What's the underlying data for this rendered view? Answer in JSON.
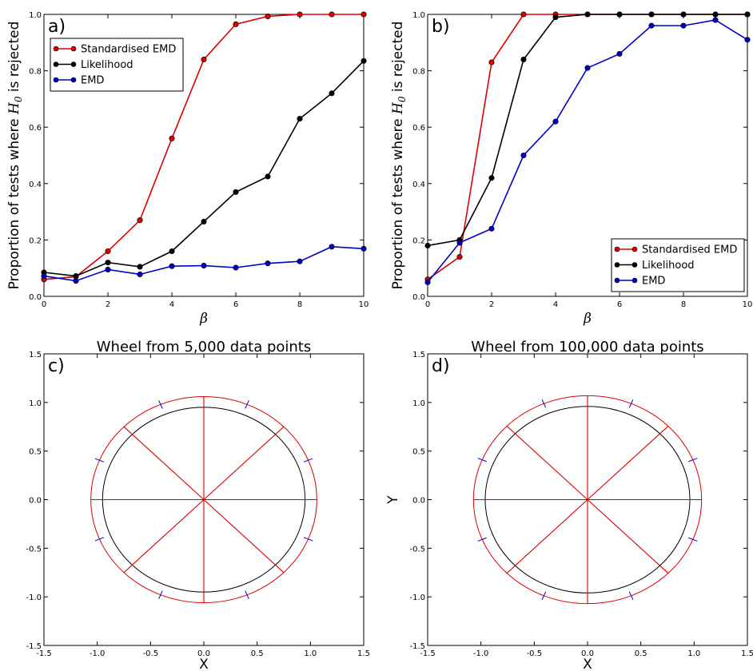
{
  "chart_data": [
    {
      "panel": "a)",
      "type": "line",
      "title": "",
      "xlabel": "β",
      "ylabel": "Proportion of tests where H0 is rejected",
      "xlim": [
        0,
        10
      ],
      "ylim": [
        0,
        1.0
      ],
      "xticks": [
        0,
        2,
        4,
        6,
        8,
        10
      ],
      "yticks": [
        0.0,
        0.2,
        0.4,
        0.6,
        0.8,
        1.0
      ],
      "legend_position": "top-left",
      "x": [
        0,
        1,
        2,
        3,
        4,
        5,
        6,
        7,
        8,
        9,
        10
      ],
      "series": [
        {
          "name": "Standardised EMD",
          "color": "#dd0000",
          "values": [
            0.06,
            0.07,
            0.16,
            0.27,
            0.56,
            0.84,
            0.965,
            0.993,
            1.0,
            1.0,
            1.0
          ]
        },
        {
          "name": "Likelihood",
          "color": "#000000",
          "values": [
            0.085,
            0.072,
            0.12,
            0.105,
            0.16,
            0.265,
            0.37,
            0.425,
            0.63,
            0.72,
            0.835
          ]
        },
        {
          "name": "EMD",
          "color": "#0000cc",
          "values": [
            0.072,
            0.055,
            0.095,
            0.078,
            0.107,
            0.109,
            0.102,
            0.117,
            0.124,
            0.176,
            0.169
          ]
        }
      ]
    },
    {
      "panel": "b)",
      "type": "line",
      "title": "",
      "xlabel": "β",
      "ylabel": "Proportion of tests where H0 is rejected",
      "xlim": [
        0,
        10
      ],
      "ylim": [
        0,
        1.0
      ],
      "xticks": [
        0,
        2,
        4,
        6,
        8,
        10
      ],
      "yticks": [
        0.0,
        0.2,
        0.4,
        0.6,
        0.8,
        1.0
      ],
      "legend_position": "bottom-right",
      "x": [
        0,
        1,
        2,
        3,
        4,
        5,
        6,
        7,
        8,
        9,
        10
      ],
      "series": [
        {
          "name": "Standardised EMD",
          "color": "#dd0000",
          "values": [
            0.06,
            0.14,
            0.83,
            1.0,
            1.0,
            1.0,
            1.0,
            1.0,
            1.0,
            1.0,
            1.0
          ]
        },
        {
          "name": "Likelihood",
          "color": "#000000",
          "values": [
            0.18,
            0.2,
            0.42,
            0.84,
            0.99,
            1.0,
            1.0,
            1.0,
            1.0,
            1.0,
            1.0
          ]
        },
        {
          "name": "EMD",
          "color": "#0000cc",
          "values": [
            0.05,
            0.19,
            0.24,
            0.5,
            0.62,
            0.81,
            0.86,
            0.96,
            0.96,
            0.98,
            0.91
          ]
        }
      ]
    },
    {
      "panel": "c)",
      "type": "diagram",
      "title": "Wheel from 5,000 data points",
      "xlabel": "X",
      "ylabel": "",
      "xlim": [
        -1.5,
        1.5
      ],
      "ylim": [
        -1.5,
        1.5
      ],
      "xticks": [
        -1.5,
        -1.0,
        -0.5,
        0.0,
        0.5,
        1.0,
        1.5
      ],
      "yticks": [
        -1.5,
        -1.0,
        -0.5,
        0.0,
        0.5,
        1.0,
        1.5
      ],
      "inner_circle_radius": 0.95,
      "outer_circle_radius": 1.06,
      "spokes_deg": [
        0,
        45,
        90,
        135,
        180,
        225,
        270,
        315
      ],
      "spoke_length": 1.06,
      "rim_marks_deg": [
        22.5,
        67.5,
        112.5,
        157.5,
        202.5,
        247.5,
        292.5,
        337.5
      ],
      "colors": {
        "inner": "#000000",
        "outer": "#dd0000",
        "marks": "#0000cc"
      }
    },
    {
      "panel": "d)",
      "type": "diagram",
      "title": "Wheel from 100,000 data points",
      "xlabel": "X",
      "ylabel": "Y",
      "xlim": [
        -1.5,
        1.5
      ],
      "ylim": [
        -1.5,
        1.5
      ],
      "xticks": [
        -1.5,
        -1.0,
        -0.5,
        0.0,
        0.5,
        1.0,
        1.5
      ],
      "yticks": [
        -1.5,
        -1.0,
        -0.5,
        0.0,
        0.5,
        1.0,
        1.5
      ],
      "inner_circle_radius": 0.96,
      "outer_circle_radius": 1.07,
      "spokes_deg": [
        0,
        45,
        90,
        135,
        180,
        225,
        270,
        315
      ],
      "spoke_length": 1.07,
      "rim_marks_deg": [
        22.5,
        67.5,
        112.5,
        157.5,
        202.5,
        247.5,
        292.5,
        337.5
      ],
      "colors": {
        "inner": "#000000",
        "outer": "#dd0000",
        "marks": "#0000cc"
      }
    }
  ]
}
